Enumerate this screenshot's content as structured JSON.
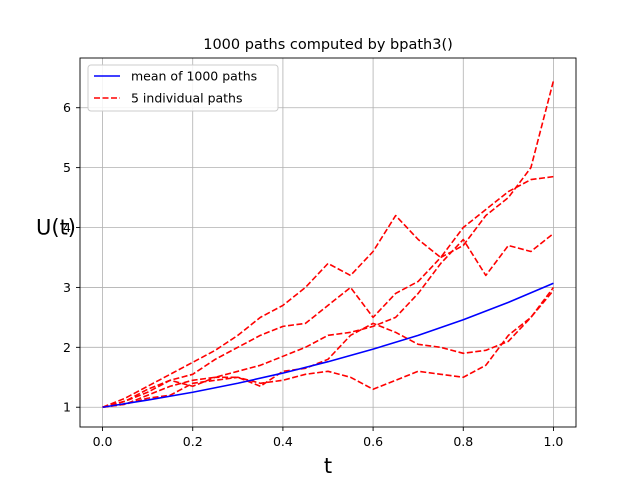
{
  "chart_data": {
    "type": "line",
    "title": "1000 paths computed by bpath3()",
    "xlabel": "t",
    "ylabel": "U(t)",
    "xlim": [
      -0.05,
      1.05
    ],
    "ylim": [
      0.67,
      6.83
    ],
    "xticks": [
      0.0,
      0.2,
      0.4,
      0.6,
      0.8,
      1.0
    ],
    "xtick_labels": [
      "0.0",
      "0.2",
      "0.4",
      "0.6",
      "0.8",
      "1.0"
    ],
    "yticks": [
      1,
      2,
      3,
      4,
      5,
      6
    ],
    "ytick_labels": [
      "1",
      "2",
      "3",
      "4",
      "5",
      "6"
    ],
    "grid": true,
    "legend_position": "top-left",
    "legend": [
      "mean of 1000 paths",
      "5 individual paths"
    ],
    "colors": {
      "mean": "#0000ff",
      "paths": "#ff0000"
    },
    "series": [
      {
        "name": "mean of 1000 paths",
        "style": "solid",
        "x": [
          0.0,
          0.1,
          0.2,
          0.3,
          0.4,
          0.5,
          0.6,
          0.7,
          0.8,
          0.9,
          1.0
        ],
        "y": [
          1.0,
          1.12,
          1.25,
          1.4,
          1.57,
          1.76,
          1.97,
          2.2,
          2.46,
          2.75,
          3.07
        ]
      },
      {
        "style": "dashed",
        "x": [
          0.0,
          0.05,
          0.1,
          0.15,
          0.2,
          0.25,
          0.3,
          0.35,
          0.4,
          0.45,
          0.5,
          0.55,
          0.6,
          0.65,
          0.7,
          0.75,
          0.8,
          0.85,
          0.9,
          0.95,
          1.0
        ],
        "y": [
          1.0,
          1.15,
          1.35,
          1.55,
          1.75,
          1.95,
          2.2,
          2.5,
          2.7,
          3.0,
          3.4,
          3.2,
          3.6,
          4.2,
          3.8,
          3.5,
          4.0,
          4.3,
          4.6,
          4.8,
          4.85
        ]
      },
      {
        "style": "dashed",
        "x": [
          0.0,
          0.05,
          0.1,
          0.15,
          0.2,
          0.25,
          0.3,
          0.35,
          0.4,
          0.45,
          0.5,
          0.55,
          0.6,
          0.65,
          0.7,
          0.75,
          0.8,
          0.85,
          0.9,
          0.95,
          1.0
        ],
        "y": [
          1.0,
          1.1,
          1.25,
          1.45,
          1.55,
          1.8,
          2.0,
          2.2,
          2.35,
          2.4,
          2.7,
          3.0,
          2.5,
          2.9,
          3.1,
          3.5,
          3.7,
          4.2,
          4.5,
          5.0,
          6.45
        ]
      },
      {
        "style": "dashed",
        "x": [
          0.0,
          0.05,
          0.1,
          0.15,
          0.2,
          0.25,
          0.3,
          0.35,
          0.4,
          0.45,
          0.5,
          0.55,
          0.6,
          0.65,
          0.7,
          0.75,
          0.8,
          0.85,
          0.9,
          0.95,
          1.0
        ],
        "y": [
          1.0,
          1.05,
          1.2,
          1.35,
          1.45,
          1.5,
          1.6,
          1.7,
          1.85,
          2.0,
          2.2,
          2.25,
          2.35,
          2.5,
          2.9,
          3.4,
          3.8,
          3.2,
          3.7,
          3.6,
          3.9
        ]
      },
      {
        "style": "dashed",
        "x": [
          0.0,
          0.05,
          0.1,
          0.15,
          0.2,
          0.25,
          0.3,
          0.35,
          0.4,
          0.45,
          0.5,
          0.55,
          0.6,
          0.65,
          0.7,
          0.75,
          0.8,
          0.85,
          0.9,
          0.95,
          1.0
        ],
        "y": [
          1.0,
          1.05,
          1.15,
          1.2,
          1.4,
          1.45,
          1.5,
          1.4,
          1.45,
          1.55,
          1.6,
          1.5,
          1.3,
          1.45,
          1.6,
          1.55,
          1.5,
          1.7,
          2.2,
          2.5,
          2.95
        ]
      },
      {
        "style": "dashed",
        "x": [
          0.0,
          0.05,
          0.1,
          0.15,
          0.2,
          0.25,
          0.3,
          0.35,
          0.4,
          0.45,
          0.5,
          0.55,
          0.6,
          0.65,
          0.7,
          0.75,
          0.8,
          0.85,
          0.9,
          0.95,
          1.0
        ],
        "y": [
          1.0,
          1.1,
          1.3,
          1.45,
          1.35,
          1.5,
          1.5,
          1.35,
          1.6,
          1.65,
          1.8,
          2.2,
          2.4,
          2.25,
          2.05,
          2.0,
          1.9,
          1.95,
          2.1,
          2.5,
          3.0
        ]
      }
    ]
  }
}
